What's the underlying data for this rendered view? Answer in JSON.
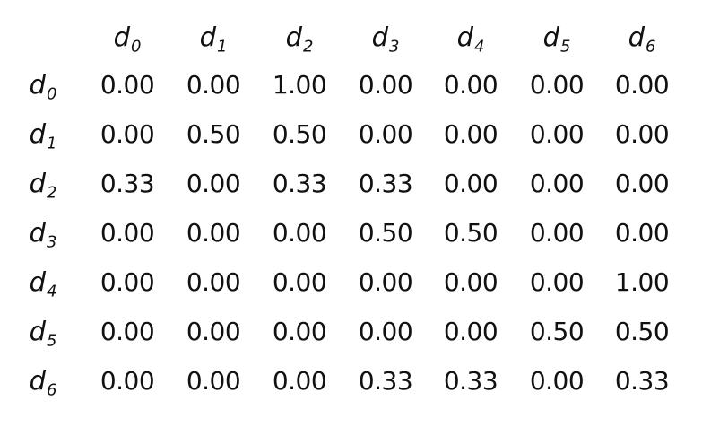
{
  "matrix": {
    "label_base": "d",
    "column_labels": [
      "0",
      "1",
      "2",
      "3",
      "4",
      "5",
      "6"
    ],
    "row_labels": [
      "0",
      "1",
      "2",
      "3",
      "4",
      "5",
      "6"
    ],
    "rows": [
      [
        "0.00",
        "0.00",
        "1.00",
        "0.00",
        "0.00",
        "0.00",
        "0.00"
      ],
      [
        "0.00",
        "0.50",
        "0.50",
        "0.00",
        "0.00",
        "0.00",
        "0.00"
      ],
      [
        "0.33",
        "0.00",
        "0.33",
        "0.33",
        "0.00",
        "0.00",
        "0.00"
      ],
      [
        "0.00",
        "0.00",
        "0.00",
        "0.50",
        "0.50",
        "0.00",
        "0.00"
      ],
      [
        "0.00",
        "0.00",
        "0.00",
        "0.00",
        "0.00",
        "0.00",
        "1.00"
      ],
      [
        "0.00",
        "0.00",
        "0.00",
        "0.00",
        "0.00",
        "0.50",
        "0.50"
      ],
      [
        "0.00",
        "0.00",
        "0.00",
        "0.33",
        "0.33",
        "0.00",
        "0.33"
      ]
    ]
  }
}
